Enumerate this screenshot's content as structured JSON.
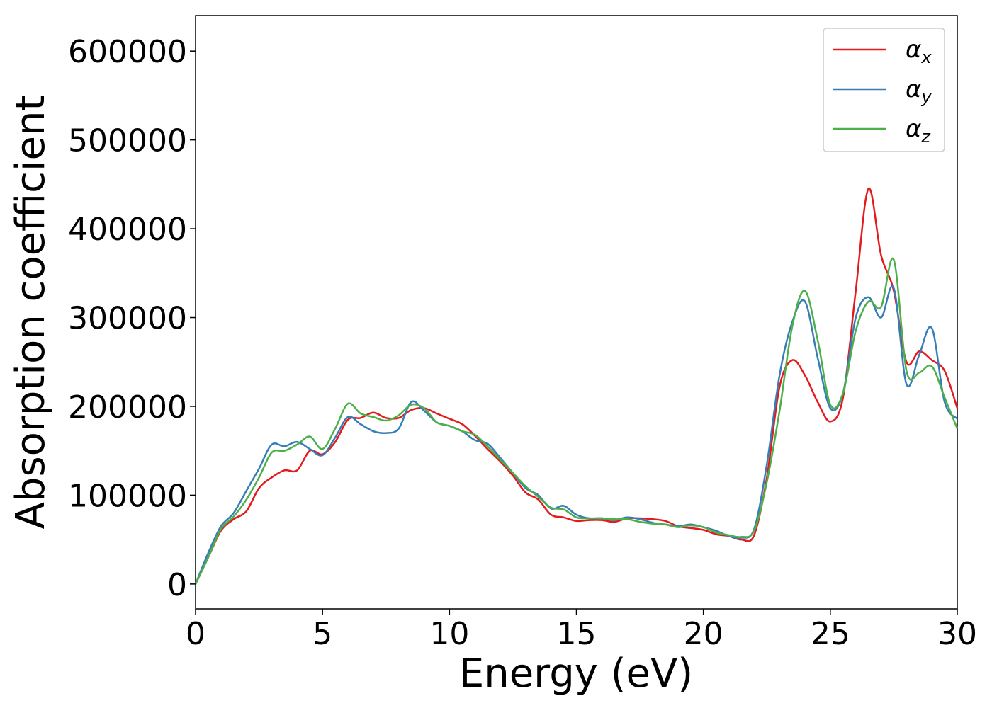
{
  "chart_data": {
    "type": "line",
    "title": "",
    "xlabel": "Energy (eV)",
    "ylabel": "Absorption coefficient",
    "xlim": [
      0,
      30
    ],
    "ylim": [
      -28000,
      640000
    ],
    "xticks": [
      0,
      5,
      10,
      15,
      20,
      25,
      30
    ],
    "yticks": [
      0,
      100000,
      200000,
      300000,
      400000,
      500000,
      600000
    ],
    "grid": false,
    "legend_position": "top-right",
    "x": [
      0,
      0.5,
      1,
      1.5,
      2,
      2.5,
      3,
      3.5,
      4,
      4.5,
      5,
      5.5,
      6,
      6.5,
      7,
      7.5,
      8,
      8.5,
      9,
      9.5,
      10,
      10.5,
      11,
      11.5,
      12,
      12.5,
      13,
      13.5,
      14,
      14.5,
      15,
      15.5,
      16,
      16.5,
      17,
      17.5,
      18,
      18.5,
      19,
      19.5,
      20,
      20.5,
      21,
      21.5,
      22,
      22.5,
      23,
      23.5,
      24,
      24.5,
      25,
      25.5,
      26,
      26.5,
      27,
      27.5,
      28,
      28.5,
      29,
      29.5,
      30
    ],
    "series": [
      {
        "name": "α",
        "subscript": "x",
        "color": "#e41a1c",
        "values": [
          0,
          30000,
          60000,
          73000,
          82000,
          108000,
          120000,
          128000,
          128000,
          150000,
          146000,
          160000,
          185000,
          187000,
          193000,
          187000,
          187000,
          196000,
          198000,
          192000,
          186000,
          180000,
          167000,
          152000,
          138000,
          122000,
          103000,
          95000,
          78000,
          75000,
          71000,
          72000,
          72000,
          70000,
          74000,
          74000,
          73000,
          71000,
          65000,
          63000,
          61000,
          56000,
          54000,
          50000,
          55000,
          120000,
          222000,
          252000,
          235000,
          205000,
          183000,
          210000,
          330000,
          445000,
          370000,
          330000,
          250000,
          262000,
          252000,
          240000,
          198000
        ]
      },
      {
        "name": "α",
        "subscript": "y",
        "color": "#377eb8",
        "values": [
          0,
          35000,
          65000,
          80000,
          105000,
          130000,
          157000,
          155000,
          160000,
          152000,
          145000,
          165000,
          188000,
          180000,
          172000,
          170000,
          175000,
          205000,
          195000,
          182000,
          178000,
          172000,
          162000,
          158000,
          142000,
          125000,
          108000,
          100000,
          85000,
          88000,
          78000,
          74000,
          74000,
          72000,
          75000,
          73000,
          69000,
          67000,
          65000,
          67000,
          64000,
          60000,
          54000,
          52000,
          62000,
          135000,
          235000,
          295000,
          318000,
          255000,
          198000,
          215000,
          300000,
          323000,
          300000,
          333000,
          225000,
          258000,
          288000,
          205000,
          186000
        ]
      },
      {
        "name": "α",
        "subscript": "z",
        "color": "#4daf4a",
        "values": [
          0,
          30000,
          62000,
          76000,
          95000,
          120000,
          148000,
          150000,
          157000,
          166000,
          152000,
          175000,
          203000,
          192000,
          188000,
          184000,
          190000,
          202000,
          198000,
          182000,
          178000,
          172000,
          168000,
          155000,
          140000,
          125000,
          110000,
          98000,
          86000,
          84000,
          75000,
          74000,
          74000,
          73000,
          73000,
          70000,
          68000,
          67000,
          64000,
          66000,
          64000,
          58000,
          55000,
          53000,
          60000,
          115000,
          195000,
          290000,
          330000,
          275000,
          202000,
          215000,
          285000,
          318000,
          312000,
          365000,
          240000,
          238000,
          245000,
          210000,
          175000
        ]
      }
    ]
  }
}
